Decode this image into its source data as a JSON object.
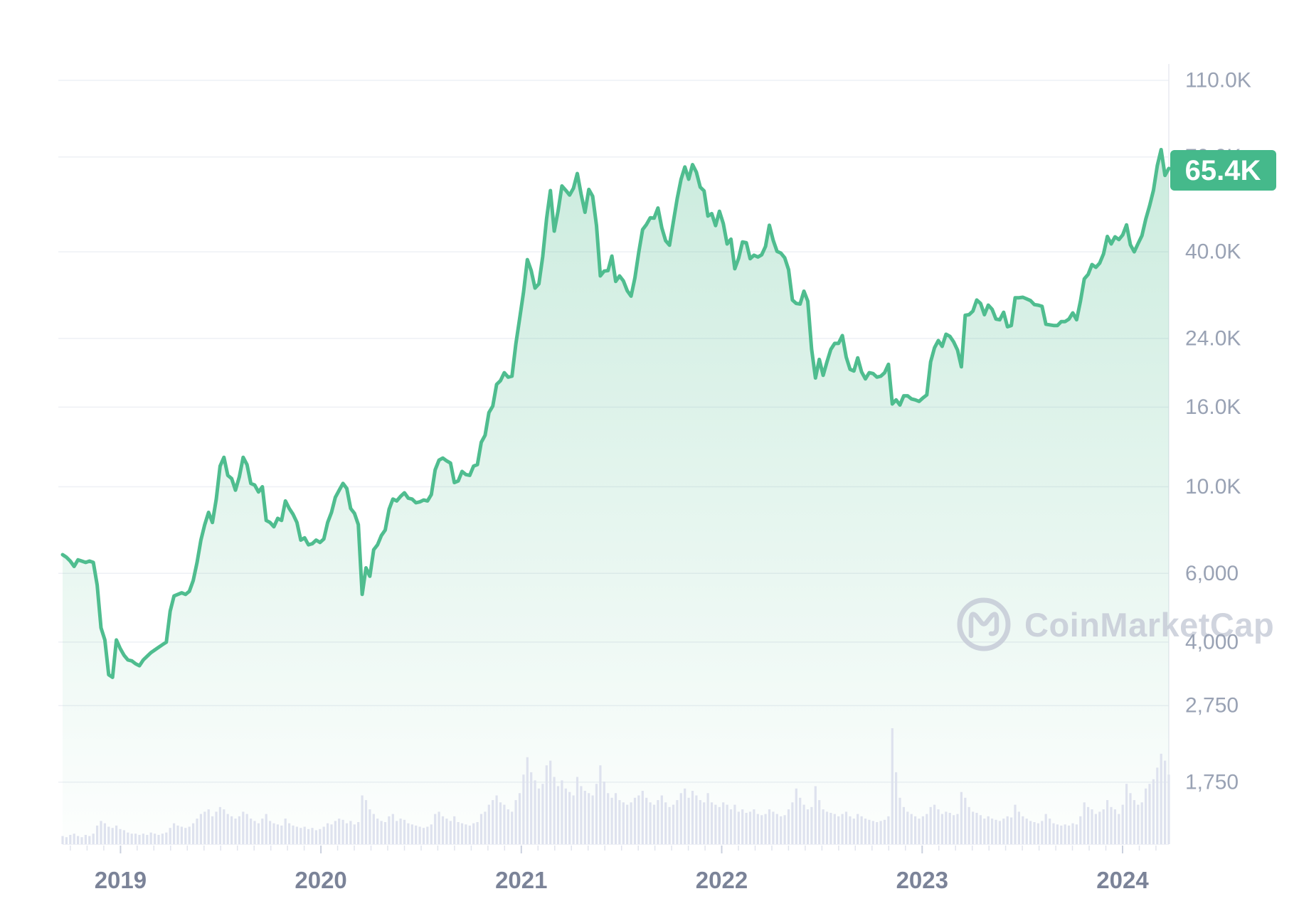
{
  "chart_data": {
    "type": "area",
    "current_price_label": "65.4K",
    "watermark": {
      "text": "CoinMarketCap"
    },
    "y_axis": {
      "scale": "log",
      "ticks": [
        {
          "label": "110.0K",
          "value": 110000
        },
        {
          "label": "70.0K",
          "value": 70000
        },
        {
          "label": "40.0K",
          "value": 40000
        },
        {
          "label": "24.0K",
          "value": 24000
        },
        {
          "label": "16.0K",
          "value": 16000
        },
        {
          "label": "10.0K",
          "value": 10000
        },
        {
          "label": "6,000",
          "value": 6000
        },
        {
          "label": "4,000",
          "value": 4000
        },
        {
          "label": "2,750",
          "value": 2750
        },
        {
          "label": "1,750",
          "value": 1750
        }
      ]
    },
    "x_axis": {
      "year_labels": [
        "2019",
        "2020",
        "2021",
        "2022",
        "2023",
        "2024"
      ]
    },
    "series": [
      {
        "name": "price_usd_weekly",
        "start": "2018-09-17",
        "interval_days": 7,
        "values": [
          6700,
          6600,
          6450,
          6250,
          6500,
          6450,
          6400,
          6450,
          6400,
          5600,
          4350,
          4050,
          3300,
          3250,
          4050,
          3850,
          3700,
          3600,
          3580,
          3520,
          3480,
          3600,
          3680,
          3760,
          3820,
          3880,
          3940,
          4000,
          4800,
          5250,
          5300,
          5350,
          5300,
          5400,
          5750,
          6400,
          7300,
          8000,
          8600,
          8100,
          9300,
          11300,
          11900,
          10700,
          10500,
          9800,
          10600,
          11900,
          11400,
          10200,
          10100,
          9700,
          10000,
          8200,
          8100,
          7900,
          8300,
          8200,
          9200,
          8800,
          8500,
          8100,
          7300,
          7400,
          7100,
          7150,
          7300,
          7200,
          7350,
          8100,
          8600,
          9400,
          9800,
          10200,
          9900,
          8800,
          8550,
          8000,
          5300,
          6200,
          5900,
          6900,
          7100,
          7500,
          7750,
          8750,
          9300,
          9200,
          9450,
          9650,
          9350,
          9300,
          9100,
          9150,
          9250,
          9200,
          9550,
          11050,
          11700,
          11850,
          11650,
          11500,
          10250,
          10350,
          10950,
          10750,
          10700,
          11300,
          11400,
          13000,
          13550,
          15500,
          16100,
          18300,
          18700,
          19600,
          19100,
          19200,
          23200,
          27000,
          31500,
          38200,
          35800,
          32300,
          33100,
          38900,
          48600,
          57400,
          45200,
          50900,
          59000,
          57500,
          55900,
          58200,
          63500,
          56200,
          50500,
          57800,
          55500,
          46700,
          34700,
          35700,
          35800,
          39000,
          33600,
          34700,
          33700,
          31800,
          30800,
          34300,
          39900,
          45600,
          47000,
          48900,
          48800,
          51800,
          46100,
          42700,
          41600,
          47700,
          54700,
          61300,
          66000,
          61400,
          66900,
          64000,
          58600,
          57300,
          49400,
          50100,
          46700,
          50800,
          47300,
          41900,
          43100,
          36200,
          38500,
          42400,
          42200,
          38400,
          39200,
          38800,
          39300,
          41300,
          46800,
          42800,
          40100,
          39700,
          38600,
          36000,
          30100,
          29500,
          29400,
          31700,
          29900,
          22500,
          19000,
          21200,
          19300,
          20900,
          22500,
          23300,
          23300,
          24400,
          21500,
          20000,
          19800,
          21400,
          19700,
          18900,
          19600,
          19500,
          19100,
          19200,
          19600,
          20600,
          16300,
          16700,
          16200,
          17100,
          17100,
          16800,
          16700,
          16550,
          16900,
          17200,
          20900,
          22700,
          23700,
          22900,
          24600,
          24300,
          23500,
          22400,
          20300,
          27500,
          27600,
          28200,
          30100,
          29500,
          27600,
          29200,
          28500,
          26900,
          26800,
          28000,
          25700,
          25900,
          30500,
          30500,
          30600,
          30300,
          30000,
          29300,
          29200,
          29000,
          26100,
          26000,
          25900,
          25900,
          26500,
          26500,
          26900,
          27900,
          26800,
          29900,
          34100,
          35000,
          37100,
          36500,
          37400,
          39500,
          43800,
          41900,
          43700,
          43000,
          44200,
          46900,
          41700,
          40000,
          42000,
          44000,
          48500,
          52500,
          57500,
          66500,
          73100,
          62800,
          65400
        ]
      },
      {
        "name": "volume_relative_weekly",
        "values": [
          7,
          6,
          8,
          9,
          7,
          6,
          8,
          7,
          9,
          16,
          20,
          18,
          15,
          14,
          16,
          13,
          12,
          10,
          9,
          9,
          8,
          9,
          8,
          10,
          9,
          8,
          9,
          10,
          14,
          18,
          16,
          15,
          14,
          15,
          18,
          22,
          26,
          28,
          30,
          24,
          28,
          32,
          30,
          26,
          24,
          22,
          24,
          28,
          26,
          22,
          20,
          18,
          22,
          26,
          20,
          18,
          17,
          16,
          22,
          18,
          16,
          15,
          14,
          15,
          13,
          14,
          12,
          13,
          15,
          18,
          17,
          20,
          22,
          21,
          18,
          20,
          17,
          19,
          42,
          38,
          30,
          26,
          22,
          20,
          19,
          24,
          26,
          20,
          22,
          21,
          18,
          17,
          16,
          15,
          14,
          15,
          17,
          26,
          28,
          24,
          22,
          20,
          24,
          19,
          18,
          17,
          16,
          18,
          19,
          26,
          28,
          34,
          38,
          42,
          36,
          34,
          30,
          28,
          38,
          44,
          60,
          75,
          62,
          55,
          48,
          52,
          68,
          72,
          58,
          50,
          55,
          48,
          45,
          42,
          58,
          50,
          46,
          44,
          42,
          52,
          68,
          54,
          44,
          40,
          44,
          38,
          36,
          34,
          36,
          40,
          42,
          46,
          40,
          36,
          34,
          38,
          42,
          36,
          32,
          34,
          38,
          44,
          48,
          40,
          46,
          42,
          38,
          36,
          44,
          36,
          34,
          32,
          36,
          34,
          30,
          34,
          28,
          30,
          27,
          28,
          30,
          26,
          25,
          26,
          30,
          28,
          26,
          24,
          25,
          30,
          36,
          48,
          40,
          34,
          30,
          32,
          50,
          38,
          30,
          28,
          27,
          26,
          24,
          26,
          28,
          24,
          22,
          26,
          24,
          22,
          21,
          20,
          19,
          20,
          21,
          24,
          100,
          62,
          40,
          32,
          28,
          26,
          24,
          22,
          24,
          26,
          32,
          34,
          30,
          26,
          28,
          27,
          25,
          26,
          45,
          40,
          32,
          28,
          27,
          25,
          22,
          24,
          22,
          21,
          20,
          22,
          24,
          23,
          34,
          28,
          24,
          22,
          20,
          19,
          18,
          20,
          26,
          22,
          18,
          17,
          16,
          17,
          16,
          18,
          17,
          24,
          36,
          32,
          30,
          26,
          28,
          30,
          38,
          32,
          30,
          26,
          34,
          52,
          44,
          38,
          34,
          36,
          48,
          52,
          56,
          66,
          78,
          72,
          60
        ]
      }
    ],
    "colors": {
      "line": "#4fbd8f",
      "area_top": "rgba(79,189,143,0.32)",
      "area_bottom": "rgba(79,189,143,0.01)",
      "badge_bg": "#45b98b",
      "badge_text": "#ffffff",
      "grid": "#eef0f5",
      "axis_edge": "#e8eaf0",
      "volume_bar": "#dee2ee",
      "y_label": "#99a2b4",
      "x_label": "#7b8398",
      "month_tick": "#e1e4ee",
      "year_tick": "#cbd1df",
      "watermark": "#c3c8d5"
    }
  }
}
